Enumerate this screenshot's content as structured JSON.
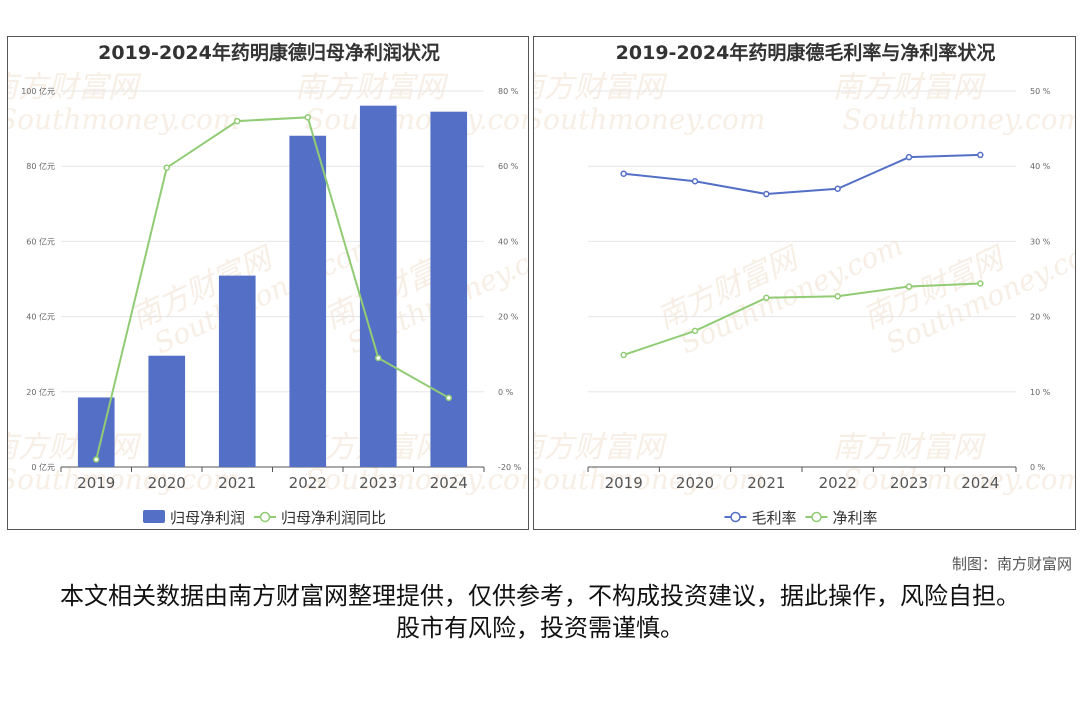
{
  "charts": [
    {
      "type": "bar+line",
      "title": "2019-2024年药明康德归母净利润状况",
      "categories": [
        "2019",
        "2020",
        "2021",
        "2022",
        "2023",
        "2024"
      ],
      "y_left": {
        "unit": "亿元",
        "ticks": [
          "0 亿元",
          "20 亿元",
          "40 亿元",
          "60 亿元",
          "80 亿元",
          "100 亿元"
        ],
        "min": 0,
        "max": 100
      },
      "y_right": {
        "unit": "%",
        "ticks": [
          "-20 %",
          "0 %",
          "20 %",
          "40 %",
          "60 %",
          "80 %"
        ],
        "min": -20,
        "max": 80
      },
      "series": [
        {
          "name": "归母净利润",
          "kind": "bar",
          "axis": "left",
          "color": "#5470c6",
          "values": [
            18.5,
            29.6,
            50.9,
            88.1,
            96.1,
            94.5
          ]
        },
        {
          "name": "归母净利润同比",
          "kind": "line",
          "axis": "right",
          "color": "#91cc75",
          "values": [
            -18.0,
            59.6,
            72.0,
            73.0,
            9.0,
            -1.6
          ]
        }
      ]
    },
    {
      "type": "line",
      "title": "2019-2024年药明康德毛利率与净利率状况",
      "categories": [
        "2019",
        "2020",
        "2021",
        "2022",
        "2023",
        "2024"
      ],
      "y_right": {
        "unit": "%",
        "ticks": [
          "0 %",
          "10 %",
          "20 %",
          "30 %",
          "40 %",
          "50 %"
        ],
        "min": 0,
        "max": 50
      },
      "series": [
        {
          "name": "毛利率",
          "kind": "line",
          "axis": "right",
          "color": "#5470c6",
          "values": [
            39.0,
            38.0,
            36.3,
            37.0,
            41.2,
            41.5
          ]
        },
        {
          "name": "净利率",
          "kind": "line",
          "axis": "right",
          "color": "#91cc75",
          "values": [
            14.9,
            18.1,
            22.5,
            22.7,
            24.0,
            24.4
          ]
        }
      ]
    }
  ],
  "watermark": {
    "cn": "南方财富网",
    "en": "Southmoney.com"
  },
  "credit": "制图：南方财富网",
  "disclaimer": "本文相关数据由南方财富网整理提供，仅供参考，不构成投资建议，据此操作，风险自担。股市有风险，投资需谨慎。"
}
